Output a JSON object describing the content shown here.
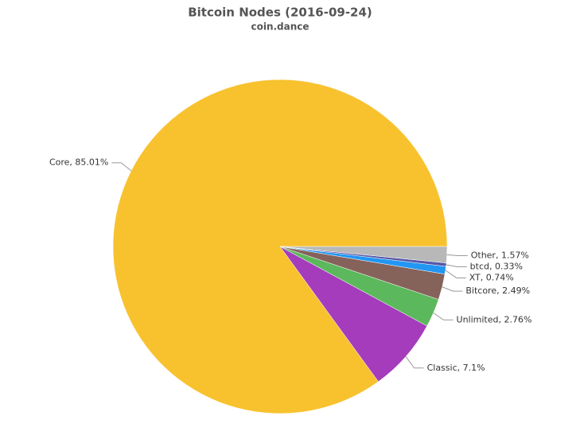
{
  "chart_data": {
    "type": "pie",
    "title": "Bitcoin Nodes (2016-09-24)",
    "subtitle": "coin.dance",
    "values": [
      85.01,
      7.1,
      2.76,
      2.49,
      0.74,
      0.33,
      1.57
    ],
    "value_labels": [
      "Core, 85.01%",
      "Classic, 7.1%",
      "Unlimited, 2.76%",
      "Bitcore, 2.49%",
      "XT, 0.74%",
      "btcd, 0.33%",
      "Other, 1.57%"
    ],
    "colors": [
      "#f8c22f",
      "#a43cbb",
      "#5cb85c",
      "#85625a",
      "#2196f3",
      "#5558a8",
      "#b8b8b8"
    ]
  }
}
